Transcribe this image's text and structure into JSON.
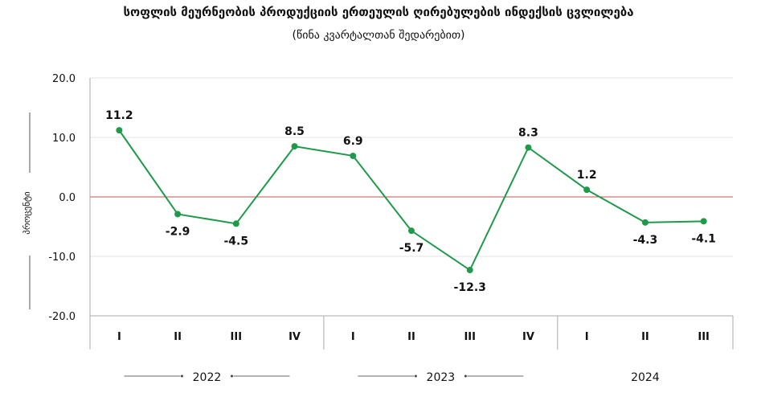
{
  "chart_data": {
    "type": "line",
    "title": "სოფლის მეურნეობის პროდუქციის ერთეულის ღირებულების ინდექსის ცვლილება",
    "subtitle": "(წინა  კვარტალთან შედარებით)",
    "y_label": "პროცენტი",
    "categories": [
      "I",
      "II",
      "III",
      "IV",
      "I",
      "II",
      "III",
      "IV",
      "I",
      "II",
      "III"
    ],
    "groups": [
      {
        "name": "2022",
        "count": 4
      },
      {
        "name": "2023",
        "count": 4
      },
      {
        "name": "2024",
        "count": 3
      }
    ],
    "series": [
      {
        "color": "#1e9a4a",
        "values": [
          11.2,
          -2.9,
          -4.5,
          8.5,
          6.9,
          -5.7,
          -12.3,
          8.3,
          1.2,
          -4.3,
          -4.1
        ]
      }
    ],
    "ylim": [
      -20,
      20
    ],
    "yticks": [
      {
        "value": -20,
        "label": "-20.0"
      },
      {
        "value": -10,
        "label": "-10.0"
      },
      {
        "value": 0,
        "label": "0.0"
      },
      {
        "value": 10,
        "label": "10.0"
      },
      {
        "value": 20,
        "label": "20.0"
      }
    ],
    "zero_line_color": "#c0504d",
    "grid": true
  }
}
